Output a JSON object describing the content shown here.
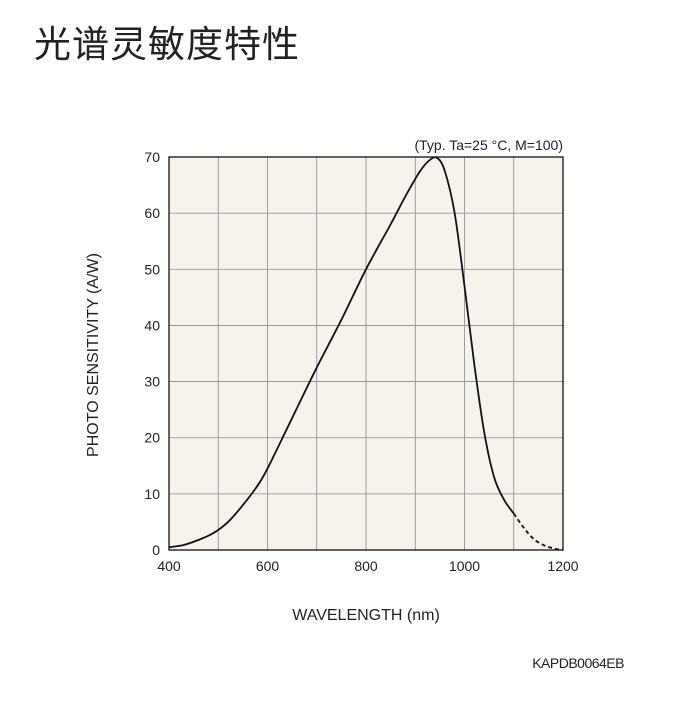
{
  "page": {
    "title": "光谱灵敏度特性"
  },
  "chart_data": {
    "type": "line",
    "title": "",
    "conditions": "(Typ. Ta=25 °C, M=100)",
    "xlabel": "WAVELENGTH (nm)",
    "ylabel": "PHOTO SENSITIVITY (A/W)",
    "xlim": [
      400,
      1200
    ],
    "ylim": [
      0,
      70
    ],
    "xticks": [
      400,
      600,
      800,
      1000,
      1200
    ],
    "yticks": [
      0,
      10,
      20,
      30,
      40,
      50,
      60,
      70
    ],
    "x_grid_step": 100,
    "grid": true,
    "plot_background": "#f5f3ec",
    "line_color": "#111111",
    "series": [
      {
        "style": "solid",
        "points": [
          [
            400,
            0.5
          ],
          [
            430,
            0.9
          ],
          [
            460,
            1.8
          ],
          [
            490,
            3.0
          ],
          [
            520,
            5.0
          ],
          [
            550,
            8.0
          ],
          [
            580,
            11.5
          ],
          [
            600,
            14.5
          ],
          [
            650,
            23.5
          ],
          [
            700,
            32.5
          ],
          [
            750,
            41.0
          ],
          [
            800,
            50.0
          ],
          [
            850,
            58.0
          ],
          [
            880,
            63.0
          ],
          [
            910,
            67.5
          ],
          [
            930,
            69.5
          ],
          [
            945,
            69.8
          ],
          [
            960,
            67.5
          ],
          [
            980,
            60.0
          ],
          [
            1000,
            47.0
          ],
          [
            1020,
            33.0
          ],
          [
            1040,
            21.0
          ],
          [
            1060,
            13.0
          ],
          [
            1080,
            9.0
          ],
          [
            1100,
            6.5
          ]
        ]
      },
      {
        "style": "dashed",
        "points": [
          [
            1100,
            6.5
          ],
          [
            1120,
            4.0
          ],
          [
            1140,
            2.0
          ],
          [
            1160,
            0.9
          ],
          [
            1180,
            0.3
          ],
          [
            1200,
            0.0
          ]
        ]
      }
    ]
  },
  "figure_code": "KAPDB0064EB"
}
